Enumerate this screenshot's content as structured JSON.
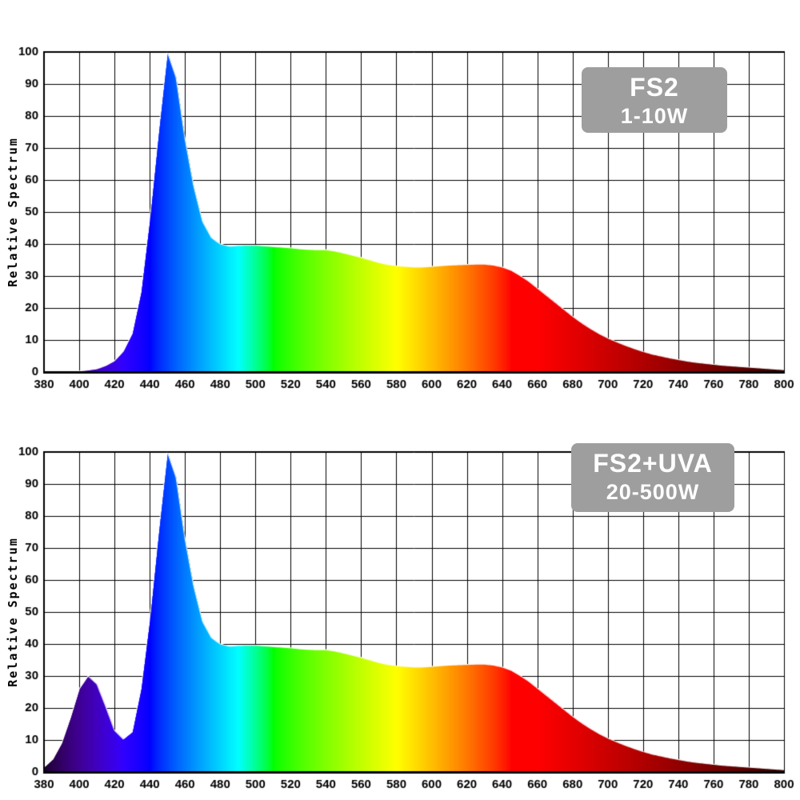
{
  "style": {
    "background": "#ffffff",
    "badge_bg": "#9e9e9e",
    "badge_text": "#ffffff",
    "grid_color": "#000000",
    "axis_color": "#000000",
    "curve_outline": "#ffffff"
  },
  "chart_data": [
    {
      "type": "area",
      "title": "FS2",
      "subtitle": "1-10W",
      "xlabel": "",
      "ylabel": "Relative Spectrum",
      "xlim": [
        380,
        800
      ],
      "ylim": [
        0,
        100
      ],
      "grid": true,
      "legend": "none",
      "fill": "spectral-wavelength-gradient",
      "x_ticks": [
        380,
        400,
        420,
        440,
        460,
        480,
        500,
        520,
        540,
        560,
        580,
        600,
        620,
        640,
        660,
        680,
        700,
        720,
        740,
        760,
        780,
        800
      ],
      "y_ticks": [
        0,
        10,
        20,
        30,
        40,
        50,
        60,
        70,
        80,
        90,
        100
      ],
      "x": [
        380,
        385,
        390,
        395,
        400,
        405,
        410,
        415,
        420,
        425,
        430,
        435,
        440,
        445,
        450,
        455,
        460,
        465,
        470,
        475,
        480,
        485,
        490,
        495,
        500,
        505,
        510,
        515,
        520,
        525,
        530,
        535,
        540,
        545,
        550,
        555,
        560,
        565,
        570,
        575,
        580,
        585,
        590,
        595,
        600,
        605,
        610,
        615,
        620,
        625,
        630,
        635,
        640,
        645,
        650,
        655,
        660,
        665,
        670,
        675,
        680,
        685,
        690,
        695,
        700,
        705,
        710,
        715,
        720,
        725,
        730,
        735,
        740,
        745,
        750,
        755,
        760,
        765,
        770,
        775,
        780,
        785,
        790,
        795,
        800
      ],
      "y": [
        0,
        0,
        0,
        0,
        0.3,
        0.6,
        1,
        2,
        3.5,
        6.5,
        12,
        25,
        48,
        75,
        100,
        92,
        73,
        58,
        47,
        42,
        40,
        39.3,
        39.5,
        39.6,
        39.6,
        39.4,
        39.2,
        39,
        38.8,
        38.5,
        38.3,
        38.2,
        38.2,
        37.8,
        37.2,
        36.5,
        35.8,
        35,
        34.2,
        33.6,
        33.2,
        33,
        32.8,
        32.8,
        33,
        33.2,
        33.4,
        33.5,
        33.6,
        33.7,
        33.7,
        33.4,
        32.8,
        31.8,
        30.2,
        28.4,
        26.2,
        24,
        21.8,
        19.6,
        17.4,
        15.4,
        13.6,
        12,
        10.6,
        9.4,
        8.3,
        7.3,
        6.4,
        5.6,
        5,
        4.4,
        3.9,
        3.4,
        3,
        2.7,
        2.4,
        2.1,
        1.9,
        1.7,
        1.5,
        1.3,
        1.1,
        0.9,
        0.7
      ]
    },
    {
      "type": "area",
      "title": "FS2+UVA",
      "subtitle": "20-500W",
      "xlabel": "",
      "ylabel": "Relative Spectrum",
      "xlim": [
        380,
        800
      ],
      "ylim": [
        0,
        100
      ],
      "grid": true,
      "legend": "none",
      "fill": "spectral-wavelength-gradient",
      "x_ticks": [
        380,
        400,
        420,
        440,
        460,
        480,
        500,
        520,
        540,
        560,
        580,
        600,
        620,
        640,
        660,
        680,
        700,
        720,
        740,
        760,
        780,
        800
      ],
      "y_ticks": [
        0,
        10,
        20,
        30,
        40,
        50,
        60,
        70,
        80,
        90,
        100
      ],
      "x": [
        380,
        385,
        390,
        395,
        400,
        405,
        410,
        415,
        420,
        425,
        430,
        435,
        440,
        445,
        450,
        455,
        460,
        465,
        470,
        475,
        480,
        485,
        490,
        495,
        500,
        505,
        510,
        515,
        520,
        525,
        530,
        535,
        540,
        545,
        550,
        555,
        560,
        565,
        570,
        575,
        580,
        585,
        590,
        595,
        600,
        605,
        610,
        615,
        620,
        625,
        630,
        635,
        640,
        645,
        650,
        655,
        660,
        665,
        670,
        675,
        680,
        685,
        690,
        695,
        700,
        705,
        710,
        715,
        720,
        725,
        730,
        735,
        740,
        745,
        750,
        755,
        760,
        765,
        770,
        775,
        780,
        785,
        790,
        795,
        800
      ],
      "y": [
        1.5,
        4,
        9,
        17,
        26,
        30,
        27.5,
        20.5,
        13,
        10.3,
        12.5,
        26,
        48,
        75,
        100,
        92,
        73,
        58,
        47,
        42,
        40,
        39.3,
        39.5,
        39.6,
        39.6,
        39.4,
        39.2,
        39,
        38.8,
        38.5,
        38.3,
        38.2,
        38.2,
        37.8,
        37.2,
        36.5,
        35.8,
        35,
        34.2,
        33.6,
        33.2,
        33,
        32.8,
        32.8,
        33,
        33.2,
        33.4,
        33.5,
        33.6,
        33.7,
        33.7,
        33.4,
        32.8,
        31.8,
        30.2,
        28.4,
        26.2,
        24,
        21.8,
        19.6,
        17.4,
        15.4,
        13.6,
        12,
        10.6,
        9.4,
        8.3,
        7.3,
        6.4,
        5.6,
        5,
        4.4,
        3.9,
        3.4,
        3,
        2.7,
        2.4,
        2.1,
        1.9,
        1.7,
        1.5,
        1.3,
        1.1,
        0.9,
        0.7
      ]
    }
  ]
}
